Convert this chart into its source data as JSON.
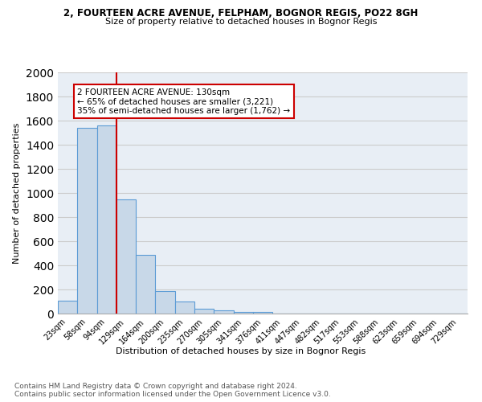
{
  "title1": "2, FOURTEEN ACRE AVENUE, FELPHAM, BOGNOR REGIS, PO22 8GH",
  "title2": "Size of property relative to detached houses in Bognor Regis",
  "xlabel": "Distribution of detached houses by size in Bognor Regis",
  "ylabel": "Number of detached properties",
  "categories": [
    "23sqm",
    "58sqm",
    "94sqm",
    "129sqm",
    "164sqm",
    "200sqm",
    "235sqm",
    "270sqm",
    "305sqm",
    "341sqm",
    "376sqm",
    "411sqm",
    "447sqm",
    "482sqm",
    "517sqm",
    "553sqm",
    "588sqm",
    "623sqm",
    "659sqm",
    "694sqm",
    "729sqm"
  ],
  "values": [
    110,
    1540,
    1560,
    950,
    490,
    185,
    100,
    38,
    25,
    15,
    15,
    0,
    0,
    0,
    0,
    0,
    0,
    0,
    0,
    0,
    0
  ],
  "bar_color": "#c8d8e8",
  "bar_edge_color": "#5b9bd5",
  "bar_edge_width": 0.8,
  "vline_color": "#cc0000",
  "annotation_text": "2 FOURTEEN ACRE AVENUE: 130sqm\n← 65% of detached houses are smaller (3,221)\n35% of semi-detached houses are larger (1,762) →",
  "annotation_box_color": "white",
  "annotation_box_edge": "#cc0000",
  "ylim": [
    0,
    2000
  ],
  "yticks": [
    0,
    200,
    400,
    600,
    800,
    1000,
    1200,
    1400,
    1600,
    1800,
    2000
  ],
  "grid_color": "#cccccc",
  "bg_color": "#e8eef5",
  "footer1": "Contains HM Land Registry data © Crown copyright and database right 2024.",
  "footer2": "Contains public sector information licensed under the Open Government Licence v3.0."
}
